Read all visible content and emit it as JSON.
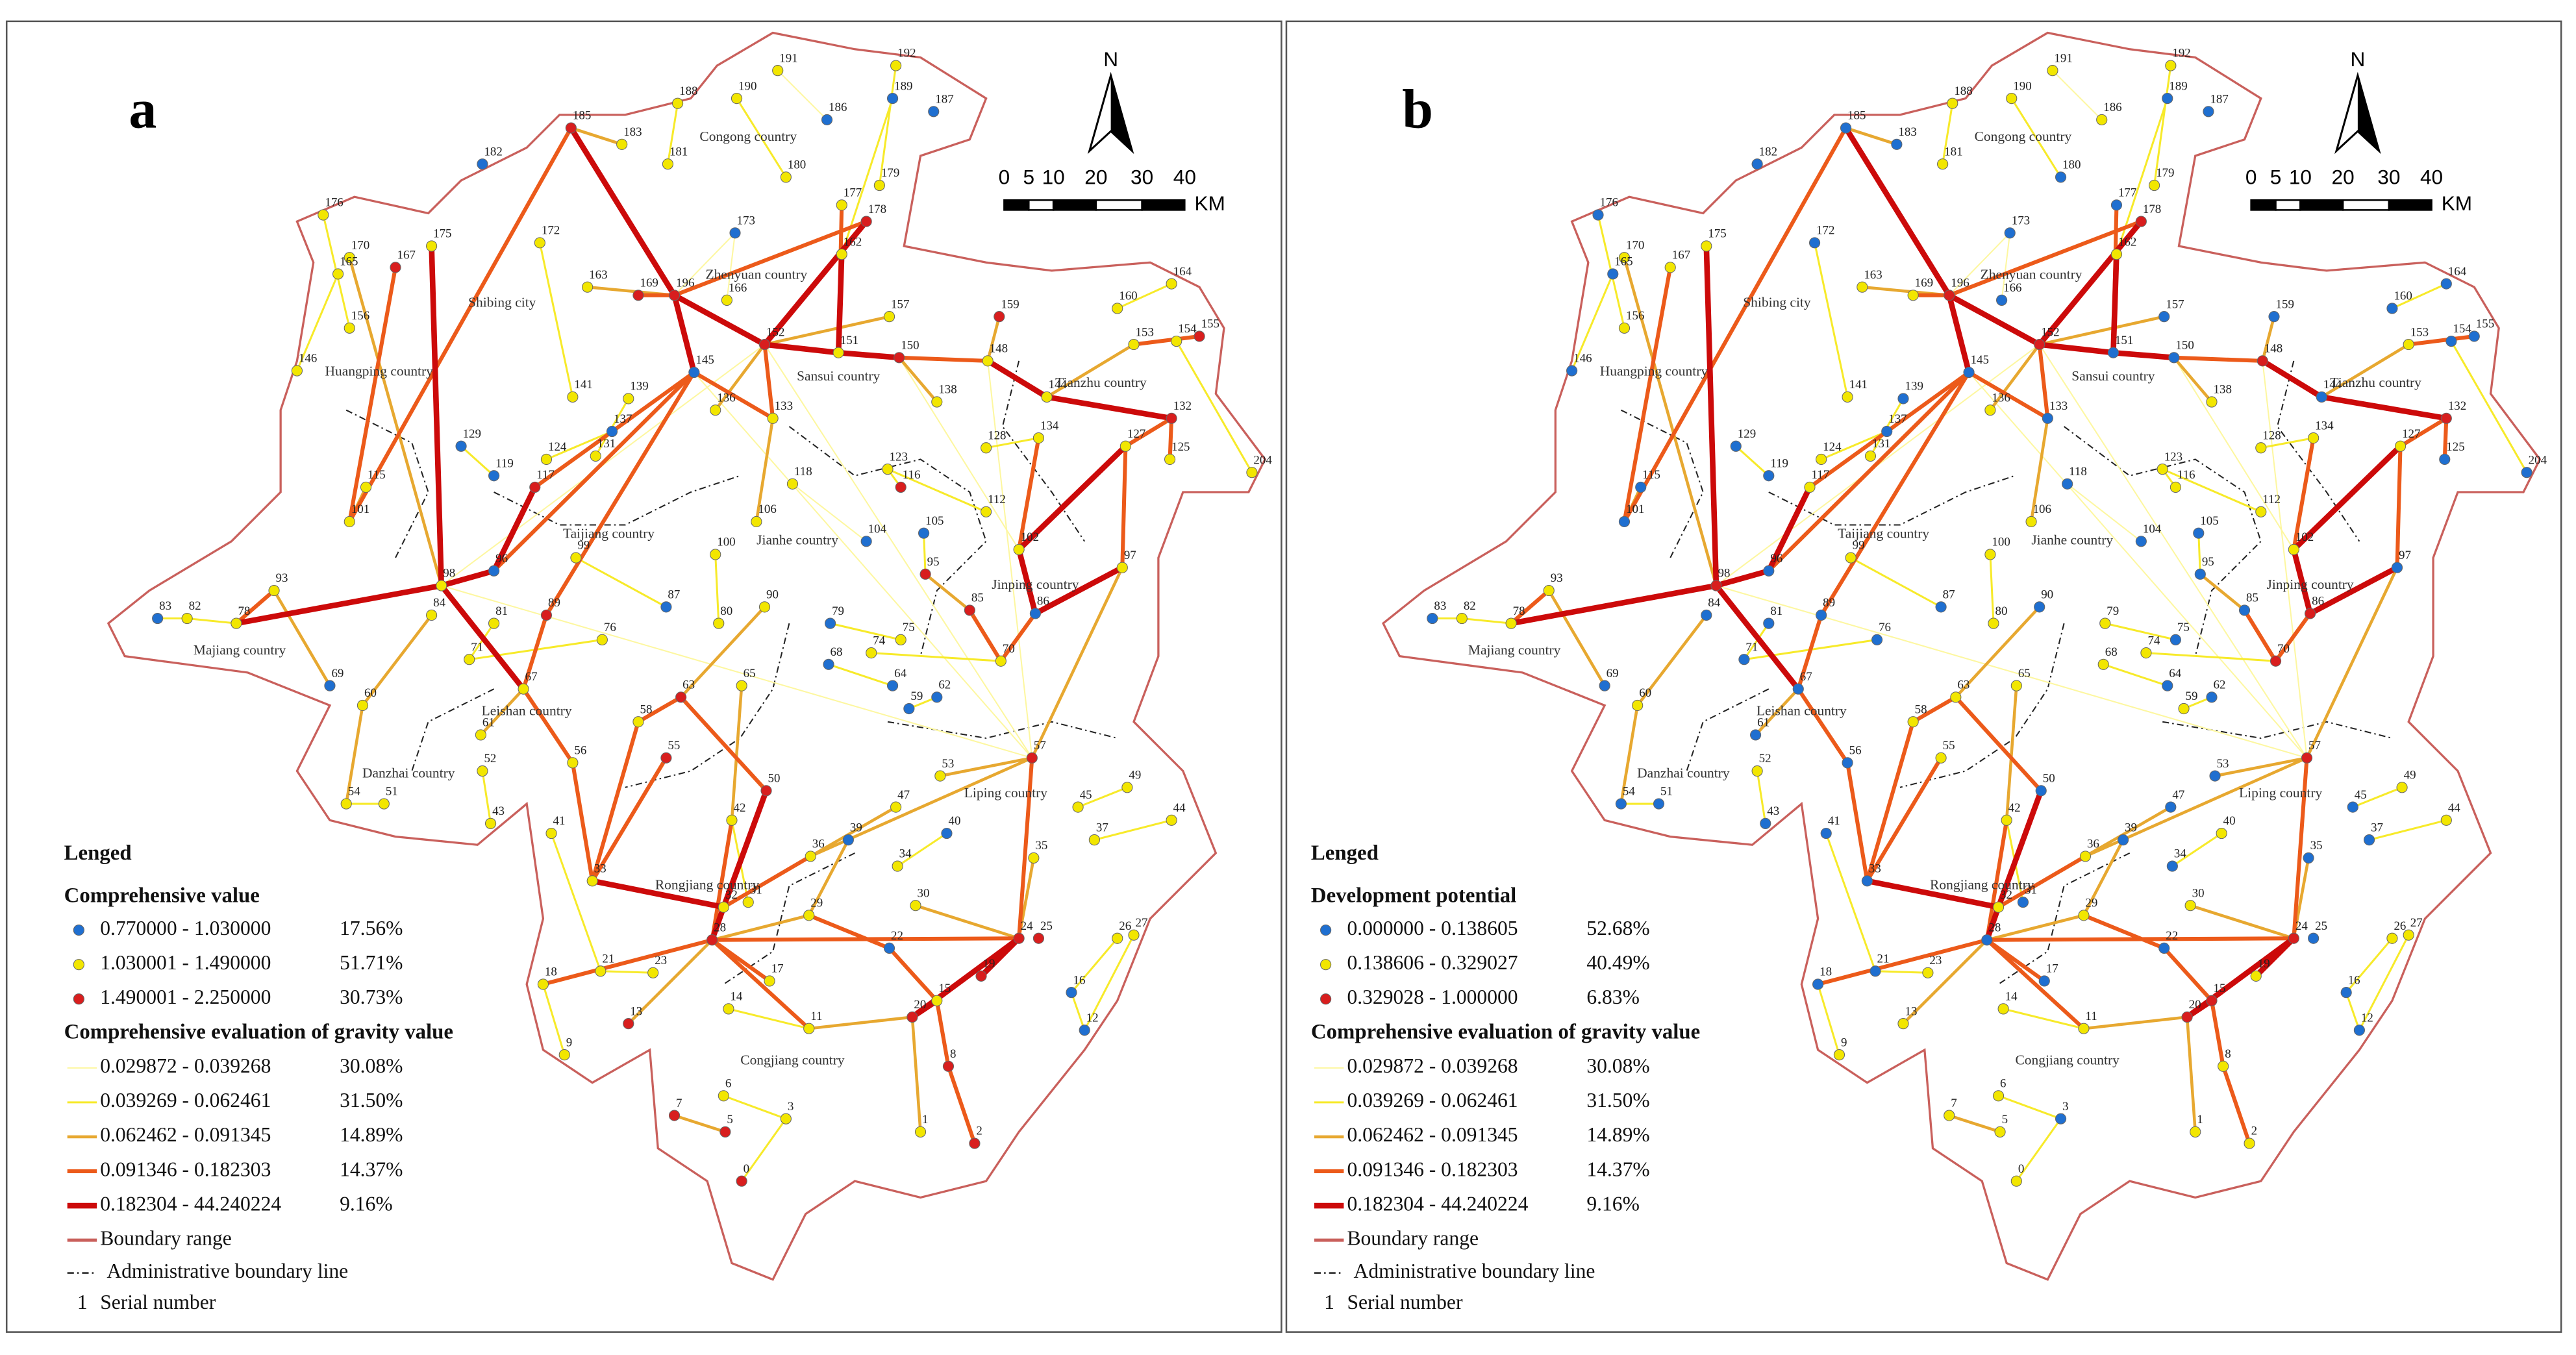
{
  "panels": [
    {
      "label": "a",
      "legend_title": "Lenged",
      "node_title": "Comprehensive value",
      "node_legend": [
        {
          "range": "0.770000 - 1.030000",
          "share": "17.56%"
        },
        {
          "range": "1.030001 - 1.490000",
          "share": "51.71%"
        },
        {
          "range": "1.490001 - 2.250000",
          "share": "30.73%"
        }
      ],
      "node_class": [
        1,
        1,
        0,
        1,
        1,
        0,
        0,
        2,
        1,
        0,
        1,
        1,
        1,
        1,
        2,
        1,
        1,
        0,
        1,
        1,
        2,
        1,
        1,
        2,
        2,
        1,
        1,
        2,
        1,
        1,
        1,
        1,
        1,
        2,
        1,
        2,
        1,
        2,
        1,
        1,
        1,
        0,
        1,
        1,
        0,
        1,
        1,
        1,
        1,
        1,
        2,
        1,
        1,
        1,
        0,
        1,
        1,
        0,
        2,
        1,
        2,
        1,
        1,
        1,
        0,
        1,
        0,
        1,
        1,
        1,
        0,
        1,
        2,
        1,
        1,
        0,
        1,
        1,
        1,
        0,
        1,
        1,
        2,
        0,
        1,
        1,
        2,
        0,
        1,
        1,
        1,
        1,
        1,
        0,
        0,
        0,
        1,
        1,
        1,
        0,
        0,
        1,
        2,
        2,
        2,
        1,
        1,
        1,
        1,
        1,
        1,
        2,
        1,
        1,
        1,
        1,
        1,
        1,
        1,
        0,
        0,
        1,
        1,
        1,
        1,
        1,
        1,
        1,
        1,
        1,
        2,
        2,
        1,
        1,
        2,
        0,
        1,
        1,
        1,
        1,
        1,
        0,
        2,
        2,
        1,
        2,
        0,
        1,
        1,
        2,
        2,
        1,
        2,
        1,
        1,
        2,
        2
      ]
    },
    {
      "label": "b",
      "legend_title": "Lenged",
      "node_title": "Development potential",
      "node_legend": [
        {
          "range": "0.000000 - 0.138605",
          "share": "52.68%"
        },
        {
          "range": "0.138606 - 0.329027",
          "share": "40.49%"
        },
        {
          "range": "0.329028 - 1.000000",
          "share": "6.83%"
        }
      ],
      "node_class": [
        1,
        1,
        0,
        1,
        1,
        1,
        0,
        0,
        0,
        0,
        1,
        0,
        1,
        0,
        2,
        0,
        1,
        0,
        0,
        1,
        1,
        0,
        1,
        2,
        1,
        0,
        1,
        0,
        0,
        0,
        0,
        1,
        1,
        0,
        0,
        2,
        0,
        0,
        2,
        0,
        0,
        0,
        1,
        0,
        0,
        1,
        0,
        1,
        1,
        1,
        2,
        1,
        0,
        0,
        0,
        1,
        1,
        0,
        1,
        1,
        1,
        0,
        0,
        1,
        0,
        1,
        0,
        1,
        1,
        0,
        0,
        2,
        0,
        0,
        1,
        0,
        1,
        1,
        1,
        0,
        0,
        1,
        0,
        2,
        0,
        0,
        0,
        1,
        0,
        1,
        0,
        0,
        2,
        1,
        0,
        0,
        1,
        0,
        1,
        0,
        1,
        1,
        1,
        2,
        1,
        0,
        0,
        0,
        0,
        0,
        1,
        0,
        1,
        0,
        1,
        0,
        1,
        0,
        0,
        1,
        0,
        0,
        1,
        0,
        0,
        0,
        1,
        0,
        1,
        1,
        2,
        0,
        1,
        1,
        0,
        0,
        0,
        1,
        0,
        0,
        2,
        0,
        1,
        2,
        1,
        1,
        0,
        1,
        1,
        1,
        1,
        1,
        1,
        0,
        1,
        1,
        1
      ]
    }
  ],
  "node_colors": [
    "#1f6fd0",
    "#f2e600",
    "#d81e1e"
  ],
  "link_title": "Comprehensive evaluation of gravity value",
  "link_legend": [
    {
      "range": "0.029872 - 0.039268",
      "share": "30.08%",
      "color": "#fdf7a0"
    },
    {
      "range": "0.039269 - 0.062461",
      "share": "31.50%",
      "color": "#f7ea2a"
    },
    {
      "range": "0.062462 - 0.091345",
      "share": "14.89%",
      "color": "#e7a830"
    },
    {
      "range": "0.091346 - 0.182303",
      "share": "14.37%",
      "color": "#ec5a1a"
    },
    {
      "range": "0.182304 - 44.240224",
      "share": "9.16%",
      "color": "#cc0a0a"
    }
  ],
  "boundary_label": "Boundary range",
  "admin_label": "Administrative boundary line",
  "serial_symbol": "1",
  "serial_label": "Serial number",
  "north": "N",
  "scale_labels": [
    "0",
    "5",
    "10",
    "20",
    "30",
    "40"
  ],
  "scale_unit": "KM",
  "counties": [
    "Congong country",
    "Zhenyuan country",
    "Shibing city",
    "Huangping country",
    "Sansui country",
    "Tianzhu country",
    "Taijiang country",
    "Jianhe country",
    "Jinping country",
    "Majiang country",
    "Leishan country",
    "Danzhai country",
    "Liping country",
    "Rongjiang country",
    "Congjiang country"
  ],
  "nodes": [
    "191",
    "192",
    "187",
    "188",
    "190",
    "186",
    "189",
    "185",
    "183",
    "182",
    "181",
    "180",
    "179",
    "177",
    "178",
    "176",
    "175",
    "173",
    "172",
    "170",
    "167",
    "165",
    "163",
    "196",
    "169",
    "166",
    "162",
    "159",
    "160",
    "164",
    "157",
    "156",
    "153",
    "155",
    "154",
    "152",
    "151",
    "150",
    "148",
    "146",
    "144",
    "145",
    "141",
    "139",
    "137",
    "136",
    "133",
    "138",
    "128",
    "134",
    "132",
    "127",
    "125",
    "204",
    "129",
    "131",
    "124",
    "119",
    "117",
    "123",
    "116",
    "118",
    "115",
    "112",
    "104",
    "106",
    "105",
    "102",
    "100",
    "101",
    "96",
    "98",
    "95",
    "97",
    "93",
    "83",
    "82",
    "78",
    "99",
    "87",
    "90",
    "80",
    "85",
    "86",
    "84",
    "81",
    "89",
    "79",
    "75",
    "74",
    "76",
    "71",
    "70",
    "68",
    "69",
    "64",
    "65",
    "67",
    "60",
    "62",
    "59",
    "58",
    "63",
    "57",
    "55",
    "56",
    "61",
    "53",
    "54",
    "51",
    "52",
    "50",
    "49",
    "43",
    "42",
    "45",
    "44",
    "47",
    "41",
    "40",
    "39",
    "37",
    "36",
    "34",
    "35",
    "33",
    "32",
    "31",
    "30",
    "29",
    "24",
    "25",
    "26",
    "27",
    "28",
    "22",
    "21",
    "23",
    "18",
    "17",
    "15",
    "16",
    "19",
    "20",
    "14",
    "13",
    "12",
    "11",
    "9",
    "8",
    "7",
    "6",
    "5",
    "3",
    "1",
    "2",
    "0"
  ],
  "links": [
    [
      "196",
      "152",
      4
    ],
    [
      "196",
      "185",
      4
    ],
    [
      "196",
      "169",
      3
    ],
    [
      "196",
      "178",
      3
    ],
    [
      "196",
      "145",
      4
    ],
    [
      "196",
      "163",
      2
    ],
    [
      "152",
      "151",
      4
    ],
    [
      "151",
      "150",
      4
    ],
    [
      "150",
      "148",
      3
    ],
    [
      "148",
      "144",
      4
    ],
    [
      "144",
      "132",
      4
    ],
    [
      "132",
      "127",
      3
    ],
    [
      "127",
      "102",
      4
    ],
    [
      "102",
      "86",
      4
    ],
    [
      "86",
      "70",
      3
    ],
    [
      "86",
      "97",
      4
    ],
    [
      "97",
      "127",
      3
    ],
    [
      "153",
      "144",
      2
    ],
    [
      "159",
      "148",
      2
    ],
    [
      "162",
      "151",
      4
    ],
    [
      "178",
      "152",
      4
    ],
    [
      "177",
      "151",
      3
    ],
    [
      "185",
      "183",
      2
    ],
    [
      "185",
      "101",
      3
    ],
    [
      "175",
      "98",
      4
    ],
    [
      "167",
      "101",
      3
    ],
    [
      "170",
      "98",
      2
    ],
    [
      "98",
      "96",
      4
    ],
    [
      "98",
      "78",
      4
    ],
    [
      "78",
      "93",
      3
    ],
    [
      "96",
      "145",
      3
    ],
    [
      "96",
      "117",
      4
    ],
    [
      "117",
      "145",
      3
    ],
    [
      "145",
      "133",
      3
    ],
    [
      "133",
      "152",
      3
    ],
    [
      "98",
      "67",
      4
    ],
    [
      "67",
      "56",
      3
    ],
    [
      "56",
      "33",
      3
    ],
    [
      "33",
      "32",
      4
    ],
    [
      "32",
      "28",
      4
    ],
    [
      "28",
      "24",
      3
    ],
    [
      "32",
      "50",
      4
    ],
    [
      "50",
      "63",
      3
    ],
    [
      "63",
      "58",
      3
    ],
    [
      "58",
      "33",
      3
    ],
    [
      "89",
      "67",
      3
    ],
    [
      "89",
      "145",
      3
    ],
    [
      "55",
      "33",
      3
    ],
    [
      "42",
      "28",
      3
    ],
    [
      "36",
      "32",
      3
    ],
    [
      "36",
      "57",
      2
    ],
    [
      "57",
      "24",
      3
    ],
    [
      "24",
      "20",
      4
    ],
    [
      "20",
      "15",
      4
    ],
    [
      "15",
      "8",
      3
    ],
    [
      "8",
      "2",
      3
    ],
    [
      "24",
      "19",
      4
    ],
    [
      "22",
      "15",
      3
    ],
    [
      "22",
      "29",
      3
    ],
    [
      "29",
      "28",
      2
    ],
    [
      "28",
      "17",
      3
    ],
    [
      "28",
      "18",
      3
    ],
    [
      "28",
      "13",
      2
    ],
    [
      "11",
      "28",
      3
    ],
    [
      "11",
      "20",
      2
    ],
    [
      "101",
      "115",
      2
    ],
    [
      "93",
      "69",
      2
    ],
    [
      "84",
      "60",
      2
    ],
    [
      "60",
      "54",
      2
    ],
    [
      "61",
      "67",
      2
    ],
    [
      "97",
      "57",
      2
    ],
    [
      "85",
      "70",
      3
    ],
    [
      "95",
      "85",
      2
    ],
    [
      "134",
      "102",
      3
    ],
    [
      "125",
      "132",
      3
    ],
    [
      "155",
      "153",
      3
    ],
    [
      "157",
      "152",
      2
    ],
    [
      "138",
      "150",
      2
    ],
    [
      "136",
      "152",
      2
    ],
    [
      "106",
      "133",
      2
    ],
    [
      "90",
      "63",
      2
    ],
    [
      "65",
      "42",
      2
    ],
    [
      "30",
      "24",
      2
    ],
    [
      "35",
      "24",
      2
    ],
    [
      "47",
      "36",
      2
    ],
    [
      "39",
      "29",
      2
    ],
    [
      "53",
      "57",
      2
    ],
    [
      "7",
      "5",
      2
    ],
    [
      "6",
      "3",
      1
    ],
    [
      "14",
      "11",
      1
    ],
    [
      "1",
      "20",
      2
    ],
    [
      "173",
      "166",
      0
    ],
    [
      "188",
      "181",
      1
    ],
    [
      "190",
      "180",
      1
    ],
    [
      "191",
      "186",
      0
    ],
    [
      "192",
      "179",
      1
    ],
    [
      "189",
      "162",
      1
    ],
    [
      "176",
      "156",
      1
    ],
    [
      "165",
      "146",
      1
    ],
    [
      "172",
      "141",
      1
    ],
    [
      "139",
      "131",
      1
    ],
    [
      "137",
      "124",
      1
    ],
    [
      "129",
      "119",
      1
    ],
    [
      "112",
      "123",
      1
    ],
    [
      "104",
      "118",
      0
    ],
    [
      "100",
      "80",
      1
    ],
    [
      "87",
      "99",
      1
    ],
    [
      "79",
      "75",
      1
    ],
    [
      "68",
      "64",
      1
    ],
    [
      "59",
      "62",
      1
    ],
    [
      "74",
      "70",
      1
    ],
    [
      "49",
      "45",
      1
    ],
    [
      "44",
      "37",
      1
    ],
    [
      "26",
      "16",
      1
    ],
    [
      "27",
      "12",
      1
    ],
    [
      "43",
      "52",
      1
    ],
    [
      "41",
      "21",
      1
    ],
    [
      "9",
      "18",
      1
    ],
    [
      "0",
      "3",
      1
    ],
    [
      "34",
      "40",
      1
    ],
    [
      "31",
      "42",
      1
    ],
    [
      "160",
      "164",
      1
    ],
    [
      "154",
      "204",
      1
    ],
    [
      "128",
      "134",
      1
    ],
    [
      "105",
      "95",
      1
    ],
    [
      "116",
      "123",
      1
    ],
    [
      "76",
      "71",
      1
    ],
    [
      "83",
      "82",
      1
    ],
    [
      "82",
      "78",
      1
    ],
    [
      "81",
      "71",
      1
    ],
    [
      "51",
      "54",
      1
    ],
    [
      "23",
      "21",
      1
    ],
    [
      "12",
      "16",
      1
    ],
    [
      "196",
      "173",
      0
    ],
    [
      "152",
      "57",
      0
    ],
    [
      "145",
      "57",
      0
    ],
    [
      "98",
      "57",
      0
    ],
    [
      "148",
      "57",
      0
    ],
    [
      "24",
      "57",
      1
    ],
    [
      "150",
      "102",
      0
    ],
    [
      "98",
      "152",
      0
    ]
  ]
}
